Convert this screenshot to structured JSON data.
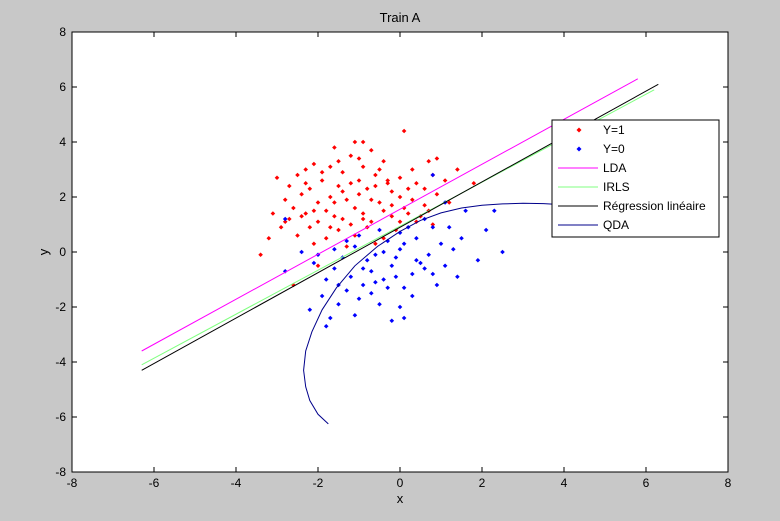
{
  "chart_data": {
    "type": "scatter",
    "title": "Train A",
    "xlabel": "x",
    "ylabel": "y",
    "xlim": [
      -8,
      8
    ],
    "ylim": [
      -8,
      8
    ],
    "xticks": [
      -8,
      -6,
      -4,
      -2,
      0,
      2,
      4,
      6,
      8
    ],
    "yticks": [
      -8,
      -6,
      -4,
      -2,
      0,
      2,
      4,
      6,
      8
    ],
    "grid": false,
    "legend_position": "top-right",
    "legend": [
      {
        "label": "Y=1",
        "color": "#ff0000",
        "kind": "marker"
      },
      {
        "label": "Y=0",
        "color": "#0000ff",
        "kind": "marker"
      },
      {
        "label": "LDA",
        "color": "#ff00ff",
        "kind": "line"
      },
      {
        "label": "IRLS",
        "color": "#80ff80",
        "kind": "line"
      },
      {
        "label": "Régression linéaire",
        "color": "#000000",
        "kind": "line"
      },
      {
        "label": "QDA",
        "color": "#00008b",
        "kind": "line"
      }
    ],
    "series": [
      {
        "name": "Y=1",
        "color": "#ff0000",
        "points": [
          [
            -0.9,
            4.0
          ],
          [
            0.1,
            4.4
          ],
          [
            -1.1,
            4.0
          ],
          [
            -1.6,
            3.8
          ],
          [
            -0.7,
            3.7
          ],
          [
            -2.1,
            3.2
          ],
          [
            -1.2,
            3.5
          ],
          [
            0.9,
            3.4
          ],
          [
            0.7,
            3.3
          ],
          [
            -0.4,
            3.3
          ],
          [
            -2.3,
            3.0
          ],
          [
            -1.7,
            3.1
          ],
          [
            -0.9,
            3.1
          ],
          [
            0.3,
            3.0
          ],
          [
            1.4,
            3.0
          ],
          [
            -2.5,
            2.8
          ],
          [
            -1.4,
            2.9
          ],
          [
            -0.6,
            2.8
          ],
          [
            0.0,
            2.7
          ],
          [
            0.8,
            2.8
          ],
          [
            -3.0,
            2.7
          ],
          [
            -1.9,
            2.6
          ],
          [
            -1.2,
            2.5
          ],
          [
            -0.3,
            2.6
          ],
          [
            0.4,
            2.5
          ],
          [
            1.1,
            2.6
          ],
          [
            -2.7,
            2.4
          ],
          [
            -2.2,
            2.3
          ],
          [
            -1.5,
            2.4
          ],
          [
            -0.8,
            2.3
          ],
          [
            -0.2,
            2.2
          ],
          [
            0.6,
            2.3
          ],
          [
            1.8,
            2.5
          ],
          [
            -2.4,
            2.1
          ],
          [
            -1.7,
            2.0
          ],
          [
            -1.0,
            2.1
          ],
          [
            0.0,
            2.0
          ],
          [
            0.9,
            2.1
          ],
          [
            -2.8,
            1.9
          ],
          [
            -2.0,
            1.8
          ],
          [
            -1.3,
            1.9
          ],
          [
            -0.5,
            1.8
          ],
          [
            0.3,
            1.9
          ],
          [
            1.2,
            1.8
          ],
          [
            -2.6,
            1.6
          ],
          [
            -1.8,
            1.5
          ],
          [
            -1.1,
            1.6
          ],
          [
            -0.4,
            1.5
          ],
          [
            0.1,
            1.6
          ],
          [
            0.7,
            1.5
          ],
          [
            -3.1,
            1.4
          ],
          [
            -2.3,
            1.4
          ],
          [
            -1.6,
            1.3
          ],
          [
            -0.9,
            1.4
          ],
          [
            -0.2,
            1.3
          ],
          [
            0.5,
            1.3
          ],
          [
            -2.7,
            1.2
          ],
          [
            -2.0,
            1.1
          ],
          [
            -1.4,
            1.2
          ],
          [
            -0.7,
            1.1
          ],
          [
            0.0,
            1.1
          ],
          [
            0.8,
            1.0
          ],
          [
            -2.9,
            0.9
          ],
          [
            -2.2,
            0.9
          ],
          [
            -1.5,
            0.8
          ],
          [
            -0.8,
            0.9
          ],
          [
            -0.1,
            0.8
          ],
          [
            -2.5,
            0.6
          ],
          [
            -1.8,
            0.5
          ],
          [
            -1.1,
            0.6
          ],
          [
            -0.4,
            0.5
          ],
          [
            -3.4,
            -0.1
          ],
          [
            -2.6,
            -1.2
          ],
          [
            -2.0,
            -0.5
          ],
          [
            -1.3,
            0.2
          ],
          [
            -0.6,
            0.3
          ],
          [
            -2.1,
            0.3
          ],
          [
            -1.9,
            2.9
          ],
          [
            -0.5,
            3.0
          ],
          [
            0.2,
            2.3
          ],
          [
            -1.0,
            2.6
          ],
          [
            -2.1,
            1.5
          ],
          [
            -1.6,
            1.8
          ],
          [
            -0.7,
            1.9
          ],
          [
            0.4,
            1.1
          ],
          [
            -1.2,
            1.0
          ],
          [
            -2.4,
            1.3
          ],
          [
            -3.2,
            0.5
          ],
          [
            -0.3,
            2.5
          ],
          [
            -1.4,
            2.2
          ],
          [
            -0.9,
            1.2
          ],
          [
            -1.7,
            0.9
          ],
          [
            0.6,
            1.7
          ],
          [
            -2.8,
            1.1
          ],
          [
            -1.0,
            3.4
          ],
          [
            -0.2,
            1.7
          ],
          [
            -2.3,
            2.5
          ],
          [
            -1.5,
            3.3
          ],
          [
            -0.6,
            2.4
          ],
          [
            0.2,
            1.4
          ]
        ]
      },
      {
        "name": "Y=0",
        "color": "#0000ff",
        "points": [
          [
            0.8,
            2.8
          ],
          [
            1.1,
            1.8
          ],
          [
            1.6,
            1.5
          ],
          [
            2.3,
            1.5
          ],
          [
            2.1,
            0.8
          ],
          [
            1.5,
            0.5
          ],
          [
            0.8,
            0.9
          ],
          [
            1.3,
            0.1
          ],
          [
            0.7,
            -0.1
          ],
          [
            1.9,
            -0.3
          ],
          [
            2.5,
            0.0
          ],
          [
            1.1,
            -0.5
          ],
          [
            0.5,
            -0.4
          ],
          [
            0.0,
            0.1
          ],
          [
            -0.3,
            0.4
          ],
          [
            -0.6,
            -0.1
          ],
          [
            -0.2,
            -0.5
          ],
          [
            0.3,
            -0.8
          ],
          [
            -0.8,
            -0.3
          ],
          [
            -1.1,
            0.2
          ],
          [
            -1.4,
            -0.2
          ],
          [
            -1.6,
            -0.6
          ],
          [
            -1.2,
            -0.9
          ],
          [
            -0.9,
            -1.2
          ],
          [
            -0.4,
            -1.0
          ],
          [
            0.1,
            -1.3
          ],
          [
            -0.7,
            -1.5
          ],
          [
            -1.3,
            -1.4
          ],
          [
            -1.8,
            -1.0
          ],
          [
            -2.1,
            -0.4
          ],
          [
            -2.4,
            0.0
          ],
          [
            -2.8,
            -0.7
          ],
          [
            -1.9,
            -1.6
          ],
          [
            -1.5,
            -1.9
          ],
          [
            -1.0,
            -1.7
          ],
          [
            -0.5,
            -1.9
          ],
          [
            0.0,
            -2.0
          ],
          [
            -1.1,
            -2.3
          ],
          [
            -1.7,
            -2.4
          ],
          [
            -2.2,
            -2.1
          ],
          [
            -0.2,
            -2.5
          ],
          [
            0.1,
            -2.4
          ],
          [
            -1.8,
            -2.7
          ],
          [
            -2.8,
            1.2
          ],
          [
            -1.0,
            0.6
          ],
          [
            -0.5,
            0.8
          ],
          [
            0.2,
            0.9
          ],
          [
            0.4,
            0.5
          ],
          [
            -0.1,
            -0.2
          ],
          [
            -0.4,
            0.0
          ],
          [
            -1.3,
            0.4
          ],
          [
            -0.7,
            -0.7
          ],
          [
            0.6,
            -0.6
          ],
          [
            1.0,
            0.3
          ],
          [
            1.4,
            -0.9
          ],
          [
            0.9,
            -1.2
          ],
          [
            0.3,
            -1.6
          ],
          [
            -0.3,
            -1.3
          ],
          [
            -1.5,
            -1.2
          ],
          [
            -2.0,
            -0.1
          ],
          [
            0.0,
            0.7
          ],
          [
            0.1,
            0.3
          ],
          [
            -0.6,
            -1.1
          ],
          [
            0.4,
            -0.3
          ],
          [
            1.2,
            0.9
          ],
          [
            0.6,
            1.2
          ],
          [
            -0.9,
            -0.6
          ],
          [
            -1.6,
            0.1
          ],
          [
            -0.1,
            -0.9
          ],
          [
            0.8,
            -0.8
          ]
        ]
      },
      {
        "name": "LDA",
        "color": "#ff00ff",
        "kind": "line",
        "points": [
          [
            -6.3,
            -3.6
          ],
          [
            5.8,
            6.3
          ]
        ]
      },
      {
        "name": "IRLS",
        "color": "#80ff80",
        "kind": "line",
        "points": [
          [
            -6.3,
            -4.1
          ],
          [
            6.2,
            5.9
          ]
        ]
      },
      {
        "name": "Régression linéaire",
        "color": "#000000",
        "kind": "line",
        "points": [
          [
            -6.3,
            -4.3
          ],
          [
            6.3,
            6.1
          ]
        ]
      },
      {
        "name": "QDA",
        "color": "#00008b",
        "kind": "line",
        "points": [
          [
            -1.75,
            -6.25
          ],
          [
            -2.0,
            -5.9
          ],
          [
            -2.2,
            -5.4
          ],
          [
            -2.3,
            -4.9
          ],
          [
            -2.35,
            -4.3
          ],
          [
            -2.3,
            -3.6
          ],
          [
            -2.15,
            -2.9
          ],
          [
            -1.9,
            -2.1
          ],
          [
            -1.55,
            -1.3
          ],
          [
            -1.1,
            -0.5
          ],
          [
            -0.55,
            0.2
          ],
          [
            0.0,
            0.75
          ],
          [
            0.5,
            1.15
          ],
          [
            1.0,
            1.42
          ],
          [
            1.5,
            1.6
          ],
          [
            2.0,
            1.7
          ],
          [
            2.5,
            1.75
          ],
          [
            3.0,
            1.77
          ],
          [
            3.5,
            1.76
          ],
          [
            4.0,
            1.72
          ],
          [
            4.5,
            1.65
          ]
        ]
      }
    ]
  }
}
